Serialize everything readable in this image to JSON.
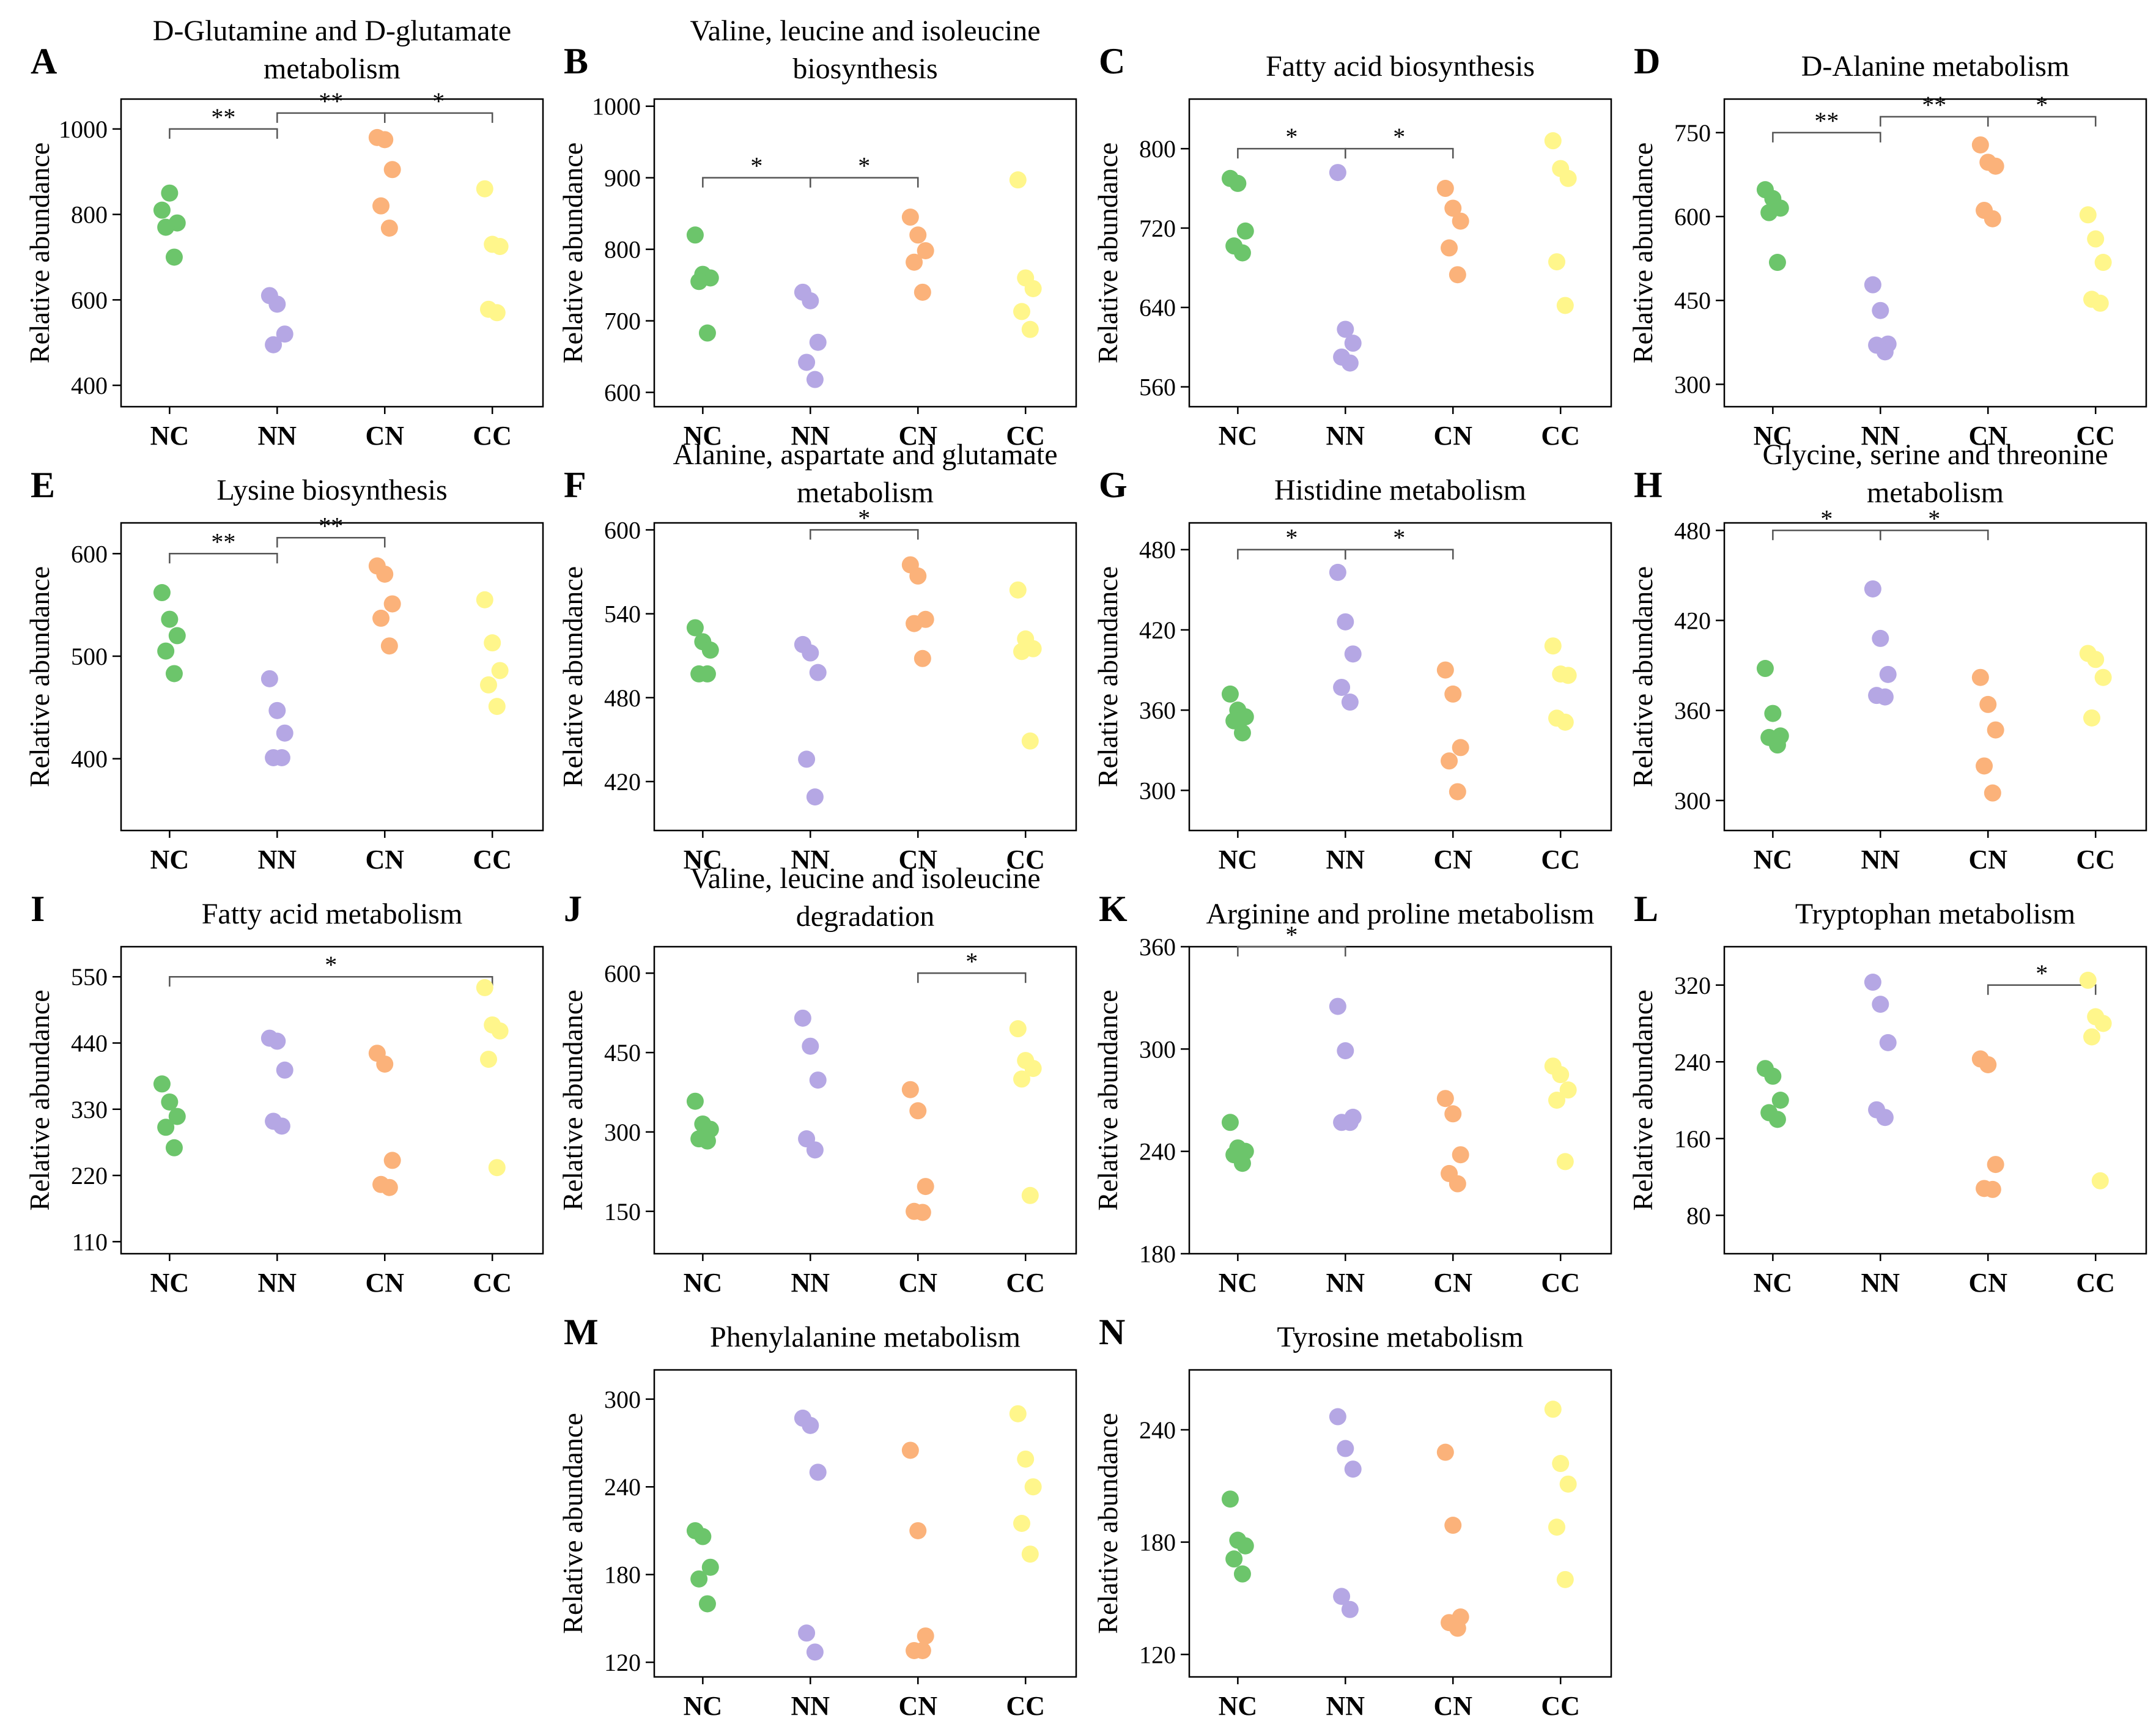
{
  "figure": {
    "categories": [
      "NC",
      "NN",
      "CN",
      "CC"
    ],
    "colors": {
      "NC": "#6cc56b",
      "NN": "#b5a7e4",
      "CN": "#fbb27a",
      "CC": "#fff68b"
    }
  },
  "chart_data": [
    {
      "letter": "A",
      "type": "scatter",
      "title": [
        "D-Glutamine and D-glutamate",
        "metabolism"
      ],
      "ylabel": "Relative abundance",
      "ylim": [
        350,
        1070
      ],
      "ticks": [
        400,
        600,
        800,
        1000
      ],
      "series": [
        {
          "name": "NC",
          "values": [
            810,
            850,
            780,
            770,
            700
          ]
        },
        {
          "name": "NN",
          "values": [
            610,
            590,
            520,
            495
          ]
        },
        {
          "name": "CN",
          "values": [
            980,
            975,
            905,
            820,
            768
          ]
        },
        {
          "name": "CC",
          "values": [
            860,
            730,
            725,
            578,
            570
          ]
        }
      ],
      "sig": [
        {
          "from": 0,
          "to": 1,
          "y": 1000,
          "label": "**",
          "level": 0
        },
        {
          "from": 1,
          "to": 2,
          "y": 1000,
          "label": "**",
          "level": 1
        },
        {
          "from": 2,
          "to": 3,
          "y": 1000,
          "label": "*",
          "level": 1
        }
      ]
    },
    {
      "letter": "B",
      "type": "scatter",
      "title": [
        "Valine, leucine and isoleucine",
        "biosynthesis"
      ],
      "ylabel": "Relative abundance",
      "ylim": [
        580,
        1010
      ],
      "ticks": [
        600,
        700,
        800,
        900,
        1000
      ],
      "series": [
        {
          "name": "NC",
          "values": [
            820,
            765,
            760,
            755,
            683
          ]
        },
        {
          "name": "NN",
          "values": [
            740,
            728,
            670,
            642,
            618
          ]
        },
        {
          "name": "CN",
          "values": [
            845,
            820,
            798,
            782,
            740
          ]
        },
        {
          "name": "CC",
          "values": [
            897,
            760,
            745,
            713,
            688
          ]
        }
      ],
      "sig": [
        {
          "from": 0,
          "to": 1,
          "y": 900,
          "label": "*",
          "level": 0
        },
        {
          "from": 1,
          "to": 2,
          "y": 900,
          "label": "*",
          "level": 0
        }
      ]
    },
    {
      "letter": "C",
      "type": "scatter",
      "title": [
        "Fatty acid biosynthesis"
      ],
      "ylabel": "Relative abundance",
      "ylim": [
        540,
        850
      ],
      "ticks": [
        560,
        640,
        720,
        800
      ],
      "series": [
        {
          "name": "NC",
          "values": [
            770,
            765,
            717,
            702,
            695
          ]
        },
        {
          "name": "NN",
          "values": [
            776,
            618,
            604,
            590,
            584
          ]
        },
        {
          "name": "CN",
          "values": [
            760,
            740,
            727,
            700,
            673
          ]
        },
        {
          "name": "CC",
          "values": [
            808,
            780,
            770,
            686,
            642
          ]
        }
      ],
      "sig": [
        {
          "from": 0,
          "to": 1,
          "y": 800,
          "label": "*",
          "level": 0
        },
        {
          "from": 1,
          "to": 2,
          "y": 800,
          "label": "*",
          "level": 0
        }
      ]
    },
    {
      "letter": "D",
      "type": "scatter",
      "title": [
        "D-Alanine metabolism"
      ],
      "ylabel": "Relative abundance",
      "ylim": [
        260,
        810
      ],
      "ticks": [
        300,
        450,
        600,
        750
      ],
      "series": [
        {
          "name": "NC",
          "values": [
            648,
            632,
            615,
            607,
            518
          ]
        },
        {
          "name": "NN",
          "values": [
            478,
            432,
            372,
            370,
            358
          ]
        },
        {
          "name": "CN",
          "values": [
            728,
            697,
            690,
            611,
            596
          ]
        },
        {
          "name": "CC",
          "values": [
            603,
            560,
            518,
            452,
            445
          ]
        }
      ],
      "sig": [
        {
          "from": 0,
          "to": 1,
          "y": 750,
          "label": "**",
          "level": 0
        },
        {
          "from": 1,
          "to": 2,
          "y": 750,
          "label": "**",
          "level": 1
        },
        {
          "from": 2,
          "to": 3,
          "y": 750,
          "label": "*",
          "level": 1
        }
      ]
    },
    {
      "letter": "E",
      "type": "scatter",
      "title": [
        "Lysine biosynthesis"
      ],
      "ylabel": "Relative abundance",
      "ylim": [
        330,
        630
      ],
      "ticks": [
        400,
        500,
        600
      ],
      "series": [
        {
          "name": "NC",
          "values": [
            562,
            536,
            520,
            505,
            483
          ]
        },
        {
          "name": "NN",
          "values": [
            478,
            447,
            425,
            401,
            401
          ]
        },
        {
          "name": "CN",
          "values": [
            588,
            580,
            551,
            537,
            510
          ]
        },
        {
          "name": "CC",
          "values": [
            555,
            513,
            486,
            472,
            451
          ]
        }
      ],
      "sig": [
        {
          "from": 0,
          "to": 1,
          "y": 600,
          "label": "**",
          "level": 0
        },
        {
          "from": 1,
          "to": 2,
          "y": 600,
          "label": "**",
          "level": 1
        }
      ]
    },
    {
      "letter": "F",
      "type": "scatter",
      "title": [
        "Alanine, aspartate and glutamate",
        "metabolism"
      ],
      "ylabel": "Relative abundance",
      "ylim": [
        385,
        605
      ],
      "ticks": [
        420,
        480,
        540,
        600
      ],
      "series": [
        {
          "name": "NC",
          "values": [
            530,
            520,
            514,
            497,
            497
          ]
        },
        {
          "name": "NN",
          "values": [
            518,
            512,
            498,
            436,
            409
          ]
        },
        {
          "name": "CN",
          "values": [
            575,
            567,
            536,
            533,
            508
          ]
        },
        {
          "name": "CC",
          "values": [
            557,
            522,
            515,
            513,
            449
          ]
        }
      ],
      "sig": [
        {
          "from": 1,
          "to": 2,
          "y": 600,
          "label": "*",
          "level": 0
        }
      ]
    },
    {
      "letter": "G",
      "type": "scatter",
      "title": [
        "Histidine metabolism"
      ],
      "ylabel": "Relative abundance",
      "ylim": [
        270,
        500
      ],
      "ticks": [
        300,
        360,
        420,
        480
      ],
      "series": [
        {
          "name": "NC",
          "values": [
            372,
            360,
            355,
            352,
            343
          ]
        },
        {
          "name": "NN",
          "values": [
            463,
            426,
            402,
            377,
            366
          ]
        },
        {
          "name": "CN",
          "values": [
            390,
            372,
            332,
            322,
            299
          ]
        },
        {
          "name": "CC",
          "values": [
            408,
            387,
            386,
            354,
            351
          ]
        }
      ],
      "sig": [
        {
          "from": 0,
          "to": 1,
          "y": 480,
          "label": "*",
          "level": 0
        },
        {
          "from": 1,
          "to": 2,
          "y": 480,
          "label": "*",
          "level": 0
        }
      ]
    },
    {
      "letter": "H",
      "type": "scatter",
      "title": [
        "Glycine, serine and threonine",
        "metabolism"
      ],
      "ylabel": "Relative abundance",
      "ylim": [
        280,
        485
      ],
      "ticks": [
        300,
        360,
        420,
        480
      ],
      "series": [
        {
          "name": "NC",
          "values": [
            388,
            358,
            343,
            342,
            337
          ]
        },
        {
          "name": "NN",
          "values": [
            441,
            408,
            384,
            370,
            369
          ]
        },
        {
          "name": "CN",
          "values": [
            382,
            364,
            347,
            323,
            305
          ]
        },
        {
          "name": "CC",
          "values": [
            398,
            394,
            382,
            355
          ]
        }
      ],
      "sig": [
        {
          "from": 0,
          "to": 1,
          "y": 480,
          "label": "*",
          "level": 0
        },
        {
          "from": 1,
          "to": 2,
          "y": 480,
          "label": "*",
          "level": 0
        }
      ]
    },
    {
      "letter": "I",
      "type": "scatter",
      "title": [
        "Fatty acid metabolism"
      ],
      "ylabel": "Relative abundance",
      "ylim": [
        90,
        600
      ],
      "ticks": [
        110,
        220,
        330,
        440,
        550
      ],
      "series": [
        {
          "name": "NC",
          "values": [
            372,
            342,
            318,
            300,
            266
          ]
        },
        {
          "name": "NN",
          "values": [
            448,
            443,
            395,
            310,
            302
          ]
        },
        {
          "name": "CN",
          "values": [
            423,
            405,
            245,
            205,
            200
          ]
        },
        {
          "name": "CC",
          "values": [
            532,
            470,
            460,
            413,
            233
          ]
        }
      ],
      "sig": [
        {
          "from": 0,
          "to": 3,
          "y": 550,
          "label": "*",
          "level": 0
        }
      ]
    },
    {
      "letter": "J",
      "type": "scatter",
      "title": [
        "Valine, leucine and isoleucine",
        "degradation"
      ],
      "ylabel": "Relative abundance",
      "ylim": [
        70,
        650
      ],
      "ticks": [
        150,
        300,
        450,
        600
      ],
      "series": [
        {
          "name": "NC",
          "values": [
            358,
            315,
            305,
            287,
            283
          ]
        },
        {
          "name": "NN",
          "values": [
            515,
            462,
            398,
            287,
            266
          ]
        },
        {
          "name": "CN",
          "values": [
            380,
            340,
            197,
            150,
            148
          ]
        },
        {
          "name": "CC",
          "values": [
            495,
            435,
            420,
            400,
            180
          ]
        }
      ],
      "sig": [
        {
          "from": 2,
          "to": 3,
          "y": 600,
          "label": "*",
          "level": 0
        }
      ]
    },
    {
      "letter": "K",
      "type": "scatter",
      "title": [
        "Arginine and proline metabolism"
      ],
      "ylabel": "Relative abundance",
      "ylim": [
        180,
        360
      ],
      "ticks": [
        180,
        240,
        300,
        360
      ],
      "series": [
        {
          "name": "NC",
          "values": [
            257,
            242,
            240,
            238,
            233
          ]
        },
        {
          "name": "NN",
          "values": [
            325,
            299,
            260,
            257,
            257
          ]
        },
        {
          "name": "CN",
          "values": [
            271,
            262,
            238,
            227,
            221
          ]
        },
        {
          "name": "CC",
          "values": [
            290,
            285,
            276,
            270,
            234
          ]
        }
      ],
      "sig": [
        {
          "from": 0,
          "to": 1,
          "y": 360,
          "label": "*",
          "level": 0
        }
      ]
    },
    {
      "letter": "L",
      "type": "scatter",
      "title": [
        "Tryptophan metabolism"
      ],
      "ylabel": "Relative abundance",
      "ylim": [
        40,
        360
      ],
      "ticks": [
        80,
        160,
        240,
        320
      ],
      "series": [
        {
          "name": "NC",
          "values": [
            233,
            225,
            200,
            187,
            180
          ]
        },
        {
          "name": "NN",
          "values": [
            323,
            300,
            260,
            190,
            182
          ]
        },
        {
          "name": "CN",
          "values": [
            243,
            237,
            133,
            108,
            107
          ]
        },
        {
          "name": "CC",
          "values": [
            325,
            287,
            280,
            266,
            116
          ]
        }
      ],
      "sig": [
        {
          "from": 2,
          "to": 3,
          "y": 320,
          "label": "*",
          "level": 0
        }
      ]
    },
    {
      "letter": "M",
      "type": "scatter",
      "title": [
        "Phenylalanine metabolism"
      ],
      "ylabel": "Relative abundance",
      "ylim": [
        110,
        320
      ],
      "ticks": [
        120,
        180,
        240,
        300
      ],
      "series": [
        {
          "name": "NC",
          "values": [
            210,
            206,
            185,
            177,
            160
          ]
        },
        {
          "name": "NN",
          "values": [
            287,
            282,
            250,
            140,
            127
          ]
        },
        {
          "name": "CN",
          "values": [
            265,
            210,
            138,
            128,
            128
          ]
        },
        {
          "name": "CC",
          "values": [
            290,
            259,
            240,
            215,
            194
          ]
        }
      ],
      "sig": []
    },
    {
      "letter": "N",
      "type": "scatter",
      "title": [
        "Tyrosine metabolism"
      ],
      "ylabel": "Relative abundance",
      "ylim": [
        108,
        272
      ],
      "ticks": [
        120,
        180,
        240
      ],
      "series": [
        {
          "name": "NC",
          "values": [
            203,
            181,
            178,
            171,
            163
          ]
        },
        {
          "name": "NN",
          "values": [
            247,
            230,
            219,
            151,
            144
          ]
        },
        {
          "name": "CN",
          "values": [
            228,
            189,
            140,
            137,
            134
          ]
        },
        {
          "name": "CC",
          "values": [
            251,
            222,
            211,
            188,
            160
          ]
        }
      ],
      "sig": []
    }
  ]
}
